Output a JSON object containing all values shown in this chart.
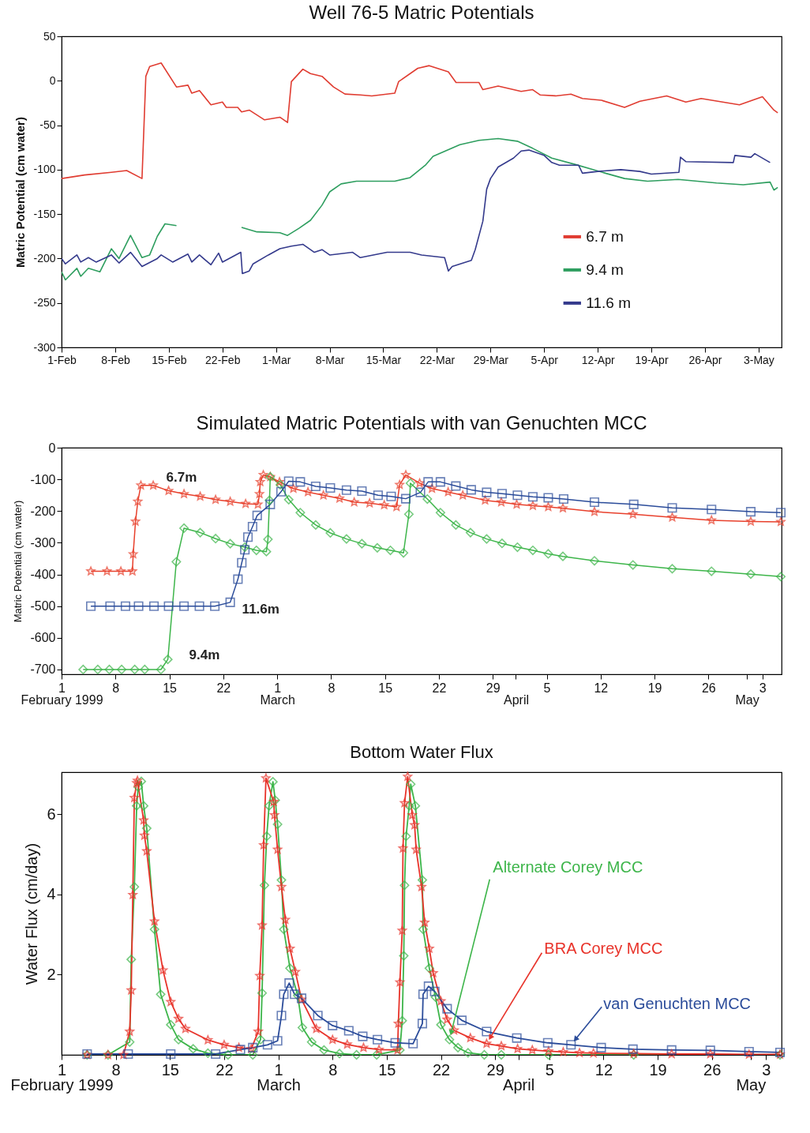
{
  "chart_data": [
    {
      "type": "line",
      "title": "Well 76-5 Matric Potentials",
      "ylabel": "Matric Potential (cm water)",
      "legend": "right",
      "xlim": [
        "1999-02-01",
        "1999-05-06"
      ],
      "xticks": [
        {
          "value": "1999-02-01",
          "label": "1-Feb"
        },
        {
          "value": "1999-02-08",
          "label": "8-Feb"
        },
        {
          "value": "1999-02-15",
          "label": "15-Feb"
        },
        {
          "value": "1999-02-22",
          "label": "22-Feb"
        },
        {
          "value": "1999-03-01",
          "label": "1-Mar"
        },
        {
          "value": "1999-03-08",
          "label": "8-Mar"
        },
        {
          "value": "1999-03-15",
          "label": "15-Mar"
        },
        {
          "value": "1999-03-22",
          "label": "22-Mar"
        },
        {
          "value": "1999-03-29",
          "label": "29-Mar"
        },
        {
          "value": "1999-04-05",
          "label": "5-Apr"
        },
        {
          "value": "1999-04-12",
          "label": "12-Apr"
        },
        {
          "value": "1999-04-19",
          "label": "19-Apr"
        },
        {
          "value": "1999-04-26",
          "label": "26-Apr"
        },
        {
          "value": "1999-05-03",
          "label": "3-May"
        }
      ],
      "ylim": [
        -300,
        50
      ],
      "yticks": [
        50,
        0,
        -50,
        -100,
        -150,
        -200,
        -250,
        -300
      ],
      "series": [
        {
          "name": "6.7 m",
          "color": "#e03c31",
          "x": [
            "1999-02-01",
            "1999-02-04",
            "1999-02-07T12:00",
            "1999-02-09T12:00",
            "1999-02-11T12:00",
            "1999-02-12",
            "1999-02-12T12:00",
            "1999-02-14",
            "1999-02-16",
            "1999-02-17T12:00",
            "1999-02-18",
            "1999-02-19",
            "1999-02-20T12:00",
            "1999-02-22",
            "1999-02-22T12:00",
            "1999-02-24",
            "1999-02-24T12:00",
            "1999-02-25T12:00",
            "1999-02-27T12:00",
            "1999-03-01T12:00",
            "1999-03-02T12:00",
            "1999-03-03",
            "1999-03-04T12:00",
            "1999-03-05T12:00",
            "1999-03-07",
            "1999-03-08T12:00",
            "1999-03-10",
            "1999-03-12",
            "1999-03-13T12:00",
            "1999-03-16T12:00",
            "1999-03-17",
            "1999-03-19T12:00",
            "1999-03-21",
            "1999-03-23T12:00",
            "1999-03-24T12:00",
            "1999-03-27T12:00",
            "1999-03-28",
            "1999-03-30",
            "1999-04-02",
            "1999-04-03T12:00",
            "1999-04-04T12:00",
            "1999-04-06T12:00",
            "1999-04-08T12:00",
            "1999-04-10",
            "1999-04-12T12:00",
            "1999-04-15T12:00",
            "1999-04-17T12:00",
            "1999-04-21",
            "1999-04-23T12:00",
            "1999-04-25T12:00",
            "1999-04-30T12:00",
            "1999-05-03T12:00",
            "1999-05-05",
            "1999-05-05T12:00"
          ],
          "values": [
            -110,
            -106,
            -103,
            -101,
            -110,
            5,
            16,
            20,
            -7,
            -5,
            -14,
            -11,
            -27,
            -24,
            -30,
            -30,
            -35,
            -33,
            -44,
            -41,
            -47,
            -1,
            13,
            8,
            5,
            -7,
            -15,
            -16,
            -17,
            -14,
            -1,
            14,
            17,
            10,
            -2,
            -2,
            -10,
            -6,
            -12,
            -10,
            -16,
            -17,
            -15,
            -20,
            -22,
            -30,
            -23,
            -17,
            -24,
            -20,
            -27,
            -18,
            -33,
            -36
          ]
        },
        {
          "name": "9.4 m",
          "color": "#2e9e5f",
          "x": [
            "1999-02-01",
            "1999-02-01T12:00",
            "1999-02-03",
            "1999-02-03T12:00",
            "1999-02-04T12:00",
            "1999-02-06",
            "1999-02-07T12:00",
            "1999-02-08T12:00",
            "1999-02-10",
            "1999-02-11T12:00",
            "1999-02-12T12:00",
            "1999-02-13T12:00",
            "1999-02-14T12:00",
            "1999-02-16",
            "1999-02-20",
            "1999-02-24T12:00",
            "1999-02-26T12:00",
            "1999-03-01T12:00",
            "1999-03-02T12:00",
            "1999-03-04",
            "1999-03-05T12:00",
            "1999-03-07",
            "1999-03-08",
            "1999-03-09T12:00",
            "1999-03-11T12:00",
            "1999-03-16T12:00",
            "1999-03-18T12:00",
            "1999-03-20T12:00",
            "1999-03-21T12:00",
            "1999-03-25",
            "1999-03-27T12:00",
            "1999-03-30",
            "1999-04-01T12:00",
            "1999-04-03T12:00",
            "1999-04-06",
            "1999-04-09",
            "1999-04-13",
            "1999-04-15T12:00",
            "1999-04-18T12:00",
            "1999-04-22T12:00",
            "1999-04-27T12:00",
            "1999-05-01",
            "1999-05-04T12:00",
            "1999-05-05",
            "1999-05-05T12:00"
          ],
          "values": [
            -215,
            -224,
            -211,
            -220,
            -211,
            -215,
            -189,
            -200,
            -174,
            -199,
            -196,
            -175,
            -161,
            -163,
            null,
            -165,
            -170,
            -171,
            -174,
            -166,
            -157,
            -140,
            -125,
            -116,
            -113,
            -113,
            -109,
            -95,
            -85,
            -72,
            -67,
            -65,
            -68,
            -76,
            -87,
            -94,
            -104,
            -110,
            -113,
            -111,
            -115,
            -117,
            -114,
            -123,
            -120
          ]
        },
        {
          "name": "11.6 m",
          "color": "#343a8c",
          "x": [
            "1999-02-01",
            "1999-02-01T12:00",
            "1999-02-03",
            "1999-02-03T12:00",
            "1999-02-04T12:00",
            "1999-02-05T12:00",
            "1999-02-07T12:00",
            "1999-02-08T12:00",
            "1999-02-10",
            "1999-02-11T12:00",
            "1999-02-13T12:00",
            "1999-02-14",
            "1999-02-15T12:00",
            "1999-02-17T12:00",
            "1999-02-18",
            "1999-02-19",
            "1999-02-20T12:00",
            "1999-02-21T12:00",
            "1999-02-22",
            "1999-02-24T09:36",
            "1999-02-24T14:24",
            "1999-02-25T12:00",
            "1999-02-26",
            "1999-02-28",
            "1999-03-01T12:00",
            "1999-03-03",
            "1999-03-04T12:00",
            "1999-03-06",
            "1999-03-07",
            "1999-03-08",
            "1999-03-11",
            "1999-03-12",
            "1999-03-15T12:00",
            "1999-03-18T12:00",
            "1999-03-20",
            "1999-03-23",
            "1999-03-23T12:00",
            "1999-03-24",
            "1999-03-26T12:00",
            "1999-03-27",
            "1999-03-28",
            "1999-03-28T12:00",
            "1999-03-29",
            "1999-03-30",
            "1999-04-01",
            "1999-04-02",
            "1999-04-03",
            "1999-04-05",
            "1999-04-06",
            "1999-04-07",
            "1999-04-09T12:00",
            "1999-04-10",
            "1999-04-12",
            "1999-04-15",
            "1999-04-17T12:00",
            "1999-04-19",
            "1999-04-22T14:24",
            "1999-04-22T19:12",
            "1999-04-23T12:00",
            "1999-04-29T16:48",
            "1999-04-29T21:36",
            "1999-05-02",
            "1999-05-02T12:00",
            "1999-05-04T12:00"
          ],
          "values": [
            -200,
            -206,
            -196,
            -204,
            -199,
            -204,
            -196,
            -205,
            -193,
            -209,
            -200,
            -196,
            -204,
            -195,
            -204,
            -196,
            -207,
            -194,
            -204,
            -193,
            -217,
            -214,
            -206,
            -196,
            -189,
            -186,
            -184,
            -193,
            -190,
            -196,
            -193,
            -199,
            -193,
            -193,
            -196,
            -199,
            -214,
            -209,
            -202,
            -190,
            -158,
            -122,
            -110,
            -97,
            -87,
            -79,
            -78,
            -84,
            -92,
            -95,
            -95,
            -104,
            -102,
            -100,
            -102,
            -105,
            -103,
            -86,
            -91,
            -92,
            -84,
            -86,
            -82,
            -92
          ]
        }
      ]
    },
    {
      "type": "line",
      "title": "Simulated Matric Potentials with van Genuchten MCC",
      "ylabel": "Matric Potential (cm water)",
      "xlim": [
        "1999-02-01",
        "1999-05-05T12:00"
      ],
      "xticks": [
        {
          "value": "1999-02-01",
          "label": "1"
        },
        {
          "value": "1999-02-08",
          "label": "8"
        },
        {
          "value": "1999-02-15",
          "label": "15"
        },
        {
          "value": "1999-02-22",
          "label": "22"
        },
        {
          "value": "1999-03-01",
          "label": "1"
        },
        {
          "value": "1999-03-08",
          "label": "8"
        },
        {
          "value": "1999-03-15",
          "label": "15"
        },
        {
          "value": "1999-03-22",
          "label": "22"
        },
        {
          "value": "1999-03-29",
          "label": "29"
        },
        {
          "value": "1999-04-01",
          "label": null
        },
        {
          "value": "1999-04-05",
          "label": "5"
        },
        {
          "value": "1999-04-12",
          "label": "12"
        },
        {
          "value": "1999-04-19",
          "label": "19"
        },
        {
          "value": "1999-04-26",
          "label": "26"
        },
        {
          "value": "1999-05-01",
          "label": null
        },
        {
          "value": "1999-05-03",
          "label": "3"
        }
      ],
      "x2lim": [
        "1999-02-01",
        "1999-05-05T12:00"
      ],
      "x2ticks": [
        {
          "value": "1999-02-01",
          "label": "February 1999"
        },
        {
          "value": "1999-03-01",
          "label": "March"
        },
        {
          "value": "1999-04-01",
          "label": "April"
        },
        {
          "value": "1999-05-01",
          "label": "May"
        }
      ],
      "ylim": [
        -715,
        0
      ],
      "yticks": [
        0,
        -100,
        -200,
        -300,
        -400,
        -500,
        -600,
        -700
      ],
      "series": [
        {
          "name": "6.7m",
          "color": "#e8402c",
          "marker": "star",
          "x": [
            "1999-02-04T19:12",
            "1999-02-06T21:36",
            "1999-02-08T16:48",
            "1999-02-10T04:48",
            "1999-02-10T07:12",
            "1999-02-10T14:24",
            "1999-02-10T21:36",
            "1999-02-11T07:12",
            "1999-02-12T21:36",
            "1999-02-14T21:36",
            "1999-02-16T21:36",
            "1999-02-19",
            "1999-02-21",
            "1999-02-22T21:36",
            "1999-02-24T21:36",
            "1999-02-26T12:00",
            "1999-02-26T16:48",
            "1999-02-26T19:12",
            "1999-02-27T04:48",
            "1999-02-28T02:24",
            "1999-03-01T07:12",
            "1999-03-03T02:24",
            "1999-03-05",
            "1999-03-07",
            "1999-03-09T02:24",
            "1999-03-11",
            "1999-03-13",
            "1999-03-14T21:36",
            "1999-03-16T12:00",
            "1999-03-16T21:36",
            "1999-03-17T16:48",
            "1999-03-19T12:00",
            "1999-03-21T02:24",
            "1999-03-23T04:48",
            "1999-03-25T02:24",
            "1999-03-28",
            "1999-03-30T02:24",
            "1999-04-01T02:24",
            "1999-04-03T04:48",
            "1999-04-05T04:48",
            "1999-04-07T02:24",
            "1999-04-11T04:48",
            "1999-04-16T04:48",
            "1999-04-21T07:12",
            "1999-04-26T09:36",
            "1999-05-01T12:00",
            "1999-05-05T09:36"
          ],
          "values": [
            -390,
            -390,
            -390,
            -390,
            -336,
            -233,
            -170,
            -119,
            -119,
            -136,
            -146,
            -154,
            -164,
            -170,
            -177,
            -179,
            -146,
            -108,
            -86,
            -92,
            -108,
            -129,
            -140,
            -150,
            -160,
            -172,
            -175,
            -181,
            -187,
            -117,
            -86,
            -112,
            -129,
            -140,
            -150,
            -166,
            -172,
            -179,
            -183,
            -187,
            -191,
            -202,
            -210,
            -220,
            -229,
            -233,
            -234
          ]
        },
        {
          "name": "9.4m",
          "color": "#3db54a",
          "marker": "diamond",
          "x": [
            "1999-02-03T19:12",
            "1999-02-05T16:48",
            "1999-02-07T04:48",
            "1999-02-08T19:12",
            "1999-02-10T12:00",
            "1999-02-11T19:12",
            "1999-02-13T21:36",
            "1999-02-14T19:12",
            "1999-02-15T21:36",
            "1999-02-16T21:36",
            "1999-02-19",
            "1999-02-21",
            "1999-02-22T21:36",
            "1999-02-24T19:12",
            "1999-02-26T07:12",
            "1999-02-27T14:24",
            "1999-02-27T19:12",
            "1999-02-28",
            "1999-02-28T02:24",
            "1999-03-01T09:36",
            "1999-03-02T12:00",
            "1999-03-04",
            "1999-03-06",
            "1999-03-07T21:36",
            "1999-03-10",
            "1999-03-12",
            "1999-03-14",
            "1999-03-15T16:48",
            "1999-03-17T09:36",
            "1999-03-18T02:24",
            "1999-03-18T07:12",
            "1999-03-20T12:00",
            "1999-03-22T04:48",
            "1999-03-24T04:48",
            "1999-03-26T02:24",
            "1999-03-28T04:48",
            "1999-03-30T04:48",
            "1999-04-01T04:48",
            "1999-04-03T04:48",
            "1999-04-05T04:48",
            "1999-04-07T02:24",
            "1999-04-11T04:48",
            "1999-04-16T04:48",
            "1999-04-21T07:12",
            "1999-04-26T09:36",
            "1999-05-01T12:00",
            "1999-05-05T09:36"
          ],
          "values": [
            -700,
            -700,
            -700,
            -700,
            -700,
            -700,
            -700,
            -668,
            -360,
            -254,
            -268,
            -287,
            -303,
            -314,
            -324,
            -328,
            -289,
            -166,
            -92,
            -117,
            -164,
            -205,
            -244,
            -269,
            -288,
            -303,
            -316,
            -324,
            -332,
            -210,
            -112,
            -162,
            -205,
            -244,
            -268,
            -288,
            -302,
            -314,
            -324,
            -335,
            -343,
            -357,
            -370,
            -382,
            -390,
            -399,
            -407
          ]
        },
        {
          "name": "11.6m",
          "color": "#2b4c9a",
          "marker": "square",
          "x": [
            "1999-02-04T19:12",
            "1999-02-07T07:12",
            "1999-02-09T07:12",
            "1999-02-11",
            "1999-02-13",
            "1999-02-14T21:36",
            "1999-02-16T21:36",
            "1999-02-18T21:36",
            "1999-02-20T21:36",
            "1999-02-22T21:36",
            "1999-02-23T21:36",
            "1999-02-24T09:36",
            "1999-02-24T19:12",
            "1999-02-25T04:48",
            "1999-02-25T19:12",
            "1999-02-26T09:36",
            "1999-02-28T02:24",
            "1999-03-01T12:00",
            "1999-03-02T12:00",
            "1999-03-04",
            "1999-03-06",
            "1999-03-07T21:36",
            "1999-03-10",
            "1999-03-12",
            "1999-03-14T02:24",
            "1999-03-15T19:12",
            "1999-03-17T16:48",
            "1999-03-19T14:24",
            "1999-03-20T14:24",
            "1999-03-22T04:48",
            "1999-03-24T04:48",
            "1999-03-26T04:48",
            "1999-03-28T04:48",
            "1999-03-30T04:48",
            "1999-04-01T04:48",
            "1999-04-03T04:48",
            "1999-04-05T04:48",
            "1999-04-07T04:48",
            "1999-04-11T04:48",
            "1999-04-16T07:12",
            "1999-04-21T07:12",
            "1999-04-26T09:36",
            "1999-05-01T12:00",
            "1999-05-05T09:36"
          ],
          "values": [
            -500,
            -500,
            -500,
            -500,
            -500,
            -500,
            -500,
            -500,
            -500,
            -488,
            -415,
            -363,
            -322,
            -282,
            -249,
            -214,
            -179,
            -139,
            -106,
            -108,
            -122,
            -127,
            -134,
            -137,
            -150,
            -154,
            -161,
            -141,
            -108,
            -108,
            -121,
            -133,
            -141,
            -145,
            -150,
            -155,
            -158,
            -162,
            -172,
            -179,
            -190,
            -195,
            -202,
            -205
          ]
        }
      ]
    },
    {
      "type": "line",
      "title": "Bottom Water Flux",
      "ylabel": "Water Flux (cm/day)",
      "xlim": [
        "1999-02-01",
        "1999-05-05"
      ],
      "xticks": [
        {
          "value": "1999-02-01",
          "label": "1"
        },
        {
          "value": "1999-02-08",
          "label": "8"
        },
        {
          "value": "1999-02-15",
          "label": "15"
        },
        {
          "value": "1999-02-22",
          "label": "22"
        },
        {
          "value": "1999-03-01",
          "label": "1"
        },
        {
          "value": "1999-03-08",
          "label": "8"
        },
        {
          "value": "1999-03-15",
          "label": "15"
        },
        {
          "value": "1999-03-22",
          "label": "22"
        },
        {
          "value": "1999-03-29",
          "label": "29"
        },
        {
          "value": "1999-04-01",
          "label": null
        },
        {
          "value": "1999-04-05",
          "label": "5"
        },
        {
          "value": "1999-04-12",
          "label": "12"
        },
        {
          "value": "1999-04-19",
          "label": "19"
        },
        {
          "value": "1999-04-26",
          "label": "26"
        },
        {
          "value": "1999-05-01",
          "label": null
        },
        {
          "value": "1999-05-03",
          "label": "3"
        }
      ],
      "x2lim": [
        "1999-02-01",
        "1999-05-05"
      ],
      "x2ticks": [
        {
          "value": "1999-02-01",
          "label": "February 1999"
        },
        {
          "value": "1999-03-01",
          "label": "March"
        },
        {
          "value": "1999-04-01",
          "label": "April"
        },
        {
          "value": "1999-05-01",
          "label": "May"
        }
      ],
      "ylim": [
        0,
        7.05
      ],
      "yticks": [
        2,
        4,
        6
      ],
      "series": [
        {
          "name": "Alternate Corey MCC",
          "color": "#3db54a",
          "marker": "diamond",
          "x": [
            "1999-02-04T07:12",
            "1999-02-07",
            "1999-02-09T19:12",
            "1999-02-10",
            "1999-02-10T09:36",
            "1999-02-10T16:48",
            "1999-02-10T21:36",
            "1999-02-11T07:12",
            "1999-02-11T14:24",
            "1999-02-12",
            "1999-02-13",
            "1999-02-13T19:12",
            "1999-02-15T02:24",
            "1999-02-16T02:24",
            "1999-02-18",
            "1999-02-19T21:36",
            "1999-02-22T12:00",
            "1999-02-25T16:48",
            "1999-02-26T16:48",
            "1999-02-26T21:36",
            "1999-02-27T04:48",
            "1999-02-27T12:00",
            "1999-02-27T19:12",
            "1999-02-28T07:12",
            "1999-02-28T14:24",
            "1999-02-28T21:36",
            "1999-03-01T09:36",
            "1999-03-01T16:48",
            "1999-03-02T12:00",
            "1999-03-03T12:00",
            "1999-03-04T02:24",
            "1999-03-05T07:12",
            "1999-03-06T21:36",
            "1999-03-08T21:36",
            "1999-03-11T02:24",
            "1999-03-13T16:48",
            "1999-03-16T16:48",
            "1999-03-17",
            "1999-03-17T04:48",
            "1999-03-17T07:12",
            "1999-03-17T12:00",
            "1999-03-17T21:36",
            "1999-03-18T02:24",
            "1999-03-18T16:48",
            "1999-03-19T14:24",
            "1999-03-19T16:48",
            "1999-03-20T12:00",
            "1999-03-21T07:12",
            "1999-03-22",
            "1999-03-23T02:24",
            "1999-03-24T04:48",
            "1999-03-25T12:00",
            "1999-03-27T14:24",
            "1999-03-29T19:12",
            "1999-04-04T21:36",
            "1999-04-15T21:36",
            "1999-05-04T19:12"
          ],
          "values": [
            0,
            0,
            0.32,
            2.38,
            4.19,
            6.21,
            6.68,
            6.82,
            6.21,
            5.65,
            3.13,
            1.51,
            0.75,
            0.38,
            0.15,
            0.04,
            0,
            0,
            0.38,
            1.54,
            4.23,
            5.45,
            6.21,
            6.81,
            6.35,
            5.75,
            4.36,
            3.13,
            2.16,
            1.48,
            0.68,
            0.32,
            0.12,
            0.03,
            0,
            0,
            0.12,
            0.85,
            2.47,
            4.23,
            5.45,
            6.21,
            6.75,
            6.21,
            4.36,
            3.13,
            2.16,
            1.44,
            0.75,
            0.38,
            0.18,
            0.05,
            0,
            0,
            0,
            0,
            0
          ]
        },
        {
          "name": "BRA Corey MCC",
          "color": "#e8332a",
          "marker": "star",
          "x": [
            "1999-02-04T07:12",
            "1999-02-07",
            "1999-02-09",
            "1999-02-09T19:12",
            "1999-02-10",
            "1999-02-10T04:48",
            "1999-02-10T09:36",
            "1999-02-10T16:48",
            "1999-02-10T19:12",
            "1999-02-11T14:24",
            "1999-02-11T16:48",
            "1999-02-12",
            "1999-02-13",
            "1999-02-14T02:24",
            "1999-02-15T02:24",
            "1999-02-16T02:24",
            "1999-02-17",
            "1999-02-19T21:36",
            "1999-02-22",
            "1999-02-23T21:36",
            "1999-02-25T12:00",
            "1999-02-26T09:36",
            "1999-02-26T14:24",
            "1999-02-26T21:36",
            "1999-02-27T02:24",
            "1999-02-27T09:36",
            "1999-02-28T09:36",
            "1999-02-28T12:00",
            "1999-02-28T21:36",
            "1999-03-01T09:36",
            "1999-03-01T21:36",
            "1999-03-02T12:00",
            "1999-03-03T04:48",
            "1999-03-04",
            "1999-03-05T21:36",
            "1999-03-08",
            "1999-03-09T21:36",
            "1999-03-12",
            "1999-03-14",
            "1999-03-16T09:36",
            "1999-03-16T12:00",
            "1999-03-16T16:48",
            "1999-03-17",
            "1999-03-17T02:24",
            "1999-03-17T07:12",
            "1999-03-17T16:48",
            "1999-03-18T07:12",
            "1999-03-18T14:24",
            "1999-03-18T19:12",
            "1999-03-19T12:00",
            "1999-03-19T21:36",
            "1999-03-20T12:00",
            "1999-03-21",
            "1999-03-22",
            "1999-03-22T19:12",
            "1999-03-23T16:48",
            "1999-03-25T19:12",
            "1999-03-27T21:36",
            "1999-03-29T19:12",
            "1999-03-31T21:36",
            "1999-04-02T19:12",
            "1999-04-04T21:36",
            "1999-04-06T19:12",
            "1999-04-08T21:36",
            "1999-04-10T16:48",
            "1999-04-15T21:36",
            "1999-04-20T19:12",
            "1999-04-25T19:12",
            "1999-04-30T19:12",
            "1999-05-04T19:12"
          ],
          "values": [
            0,
            0,
            0,
            0.58,
            1.61,
            3.99,
            6.41,
            6.78,
            6.84,
            5.85,
            5.47,
            5.08,
            3.33,
            2.11,
            1.32,
            0.9,
            0.65,
            0.37,
            0.25,
            0.18,
            0.15,
            0.58,
            1.97,
            3.23,
            5.23,
            6.9,
            6.31,
            5.98,
            5.12,
            4.19,
            3.37,
            2.65,
            2.07,
            1.38,
            0.65,
            0.38,
            0.26,
            0.18,
            0.13,
            0.12,
            0.78,
            1.81,
            3.1,
            5.15,
            6.28,
            6.94,
            5.98,
            5.73,
            5.12,
            4.19,
            3.3,
            2.65,
            2.04,
            1.34,
            0.88,
            0.61,
            0.42,
            0.28,
            0.22,
            0.15,
            0.12,
            0.09,
            0.07,
            0.05,
            0.04,
            0.03,
            0.02,
            0.02,
            0.01,
            0.01
          ]
        },
        {
          "name": "van Genuchten MCC",
          "color": "#2b4c9a",
          "marker": "square",
          "x": [
            "1999-02-04T07:12",
            "1999-02-09T14:24",
            "1999-02-15T02:24",
            "1999-02-20T21:36",
            "1999-02-24T02:24",
            "1999-02-25T16:48",
            "1999-02-27T14:24",
            "1999-02-28T21:36",
            "1999-03-01T09:36",
            "1999-03-01T16:48",
            "1999-03-02T09:36",
            "1999-03-03T02:24",
            "1999-03-04",
            "1999-03-06T02:24",
            "1999-03-08",
            "1999-03-10T02:24",
            "1999-03-11T21:36",
            "1999-03-13T19:12",
            "1999-03-16T02:24",
            "1999-03-18T09:36",
            "1999-03-19T14:24",
            "1999-03-19T16:48",
            "1999-03-20T09:36",
            "1999-03-21T04:48",
            "1999-03-22T19:12",
            "1999-03-24T16:48",
            "1999-03-27T21:36",
            "1999-03-31T19:12",
            "1999-04-04T19:12",
            "1999-04-07T19:12",
            "1999-04-11T16:48",
            "1999-04-15T19:12",
            "1999-04-20T19:12",
            "1999-04-25T19:12",
            "1999-04-30T19:12",
            "1999-05-04T19:12"
          ],
          "values": [
            0.02,
            0.02,
            0.02,
            0.02,
            0.13,
            0.18,
            0.25,
            0.35,
            0.98,
            1.51,
            1.79,
            1.51,
            1.41,
            0.98,
            0.73,
            0.6,
            0.46,
            0.38,
            0.3,
            0.28,
            0.78,
            1.51,
            1.71,
            1.58,
            1.15,
            0.86,
            0.58,
            0.42,
            0.3,
            0.25,
            0.18,
            0.14,
            0.12,
            0.11,
            0.08,
            0.06
          ]
        }
      ]
    }
  ]
}
